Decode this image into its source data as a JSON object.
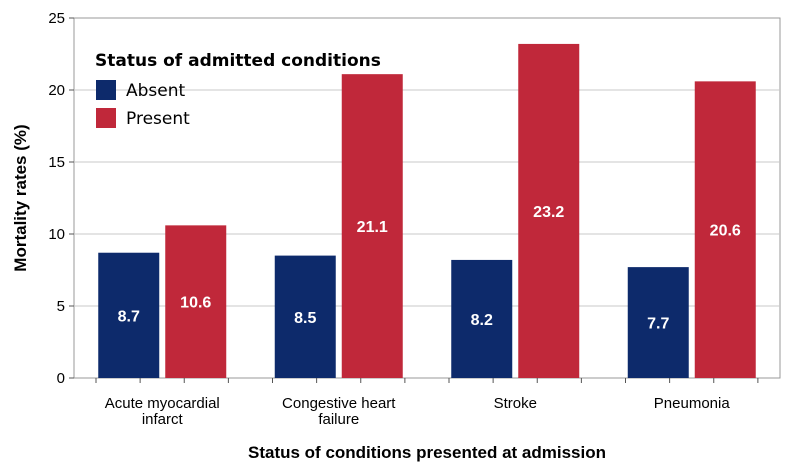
{
  "chart_data": {
    "type": "bar",
    "categories": [
      [
        "Acute myocardial",
        "infarct"
      ],
      [
        "Congestive heart",
        "failure"
      ],
      [
        "Stroke"
      ],
      [
        "Pneumonia"
      ]
    ],
    "series": [
      {
        "name": "Absent",
        "values": [
          8.7,
          8.5,
          8.2,
          7.7
        ],
        "labels": [
          "8.7",
          "8.5",
          "8.2",
          "7.7"
        ],
        "color": "#0d2a6b"
      },
      {
        "name": "Present",
        "values": [
          10.6,
          21.1,
          23.2,
          20.6
        ],
        "labels": [
          "10.6",
          "21.1",
          "23.2",
          "20.6"
        ],
        "color": "#c0283a"
      }
    ],
    "xlabel": "Status of conditions presented at admission",
    "ylabel": "Mortality rates (%)",
    "ylim": [
      0,
      25
    ],
    "yticks": [
      0,
      5,
      10,
      15,
      20,
      25
    ],
    "grid": true,
    "legend": {
      "title": "Status of admitted conditions",
      "placement": "top-left"
    }
  }
}
